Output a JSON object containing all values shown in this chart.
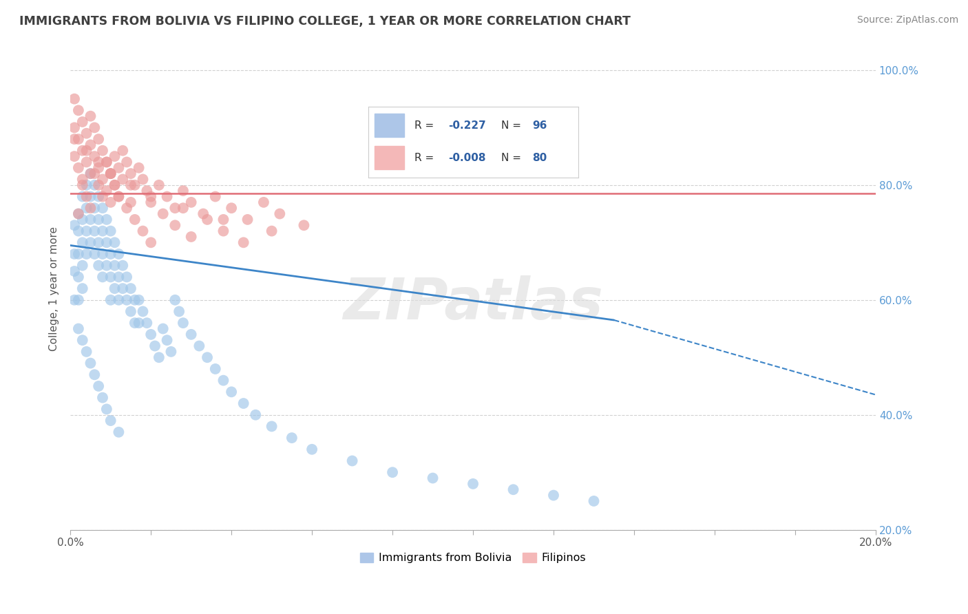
{
  "title": "IMMIGRANTS FROM BOLIVIA VS FILIPINO COLLEGE, 1 YEAR OR MORE CORRELATION CHART",
  "source_text": "Source: ZipAtlas.com",
  "ylabel": "College, 1 year or more",
  "xlim": [
    0.0,
    0.2
  ],
  "ylim": [
    0.2,
    1.04
  ],
  "xticks_major": [
    0.0,
    0.02,
    0.04,
    0.06,
    0.08,
    0.1,
    0.12,
    0.14,
    0.16,
    0.18,
    0.2
  ],
  "xtick_label_left": "0.0%",
  "xtick_label_right": "20.0%",
  "yticks": [
    0.2,
    0.4,
    0.6,
    0.8,
    1.0
  ],
  "ytick_labels": [
    "20.0%",
    "40.0%",
    "60.0%",
    "80.0%",
    "100.0%"
  ],
  "legend_labels": [
    "Immigrants from Bolivia",
    "Filipinos"
  ],
  "blue_color": "#9fc5e8",
  "pink_color": "#ea9999",
  "blue_line_color": "#3d85c8",
  "pink_line_color": "#e06c75",
  "watermark": "ZIPatlas",
  "trend_line_blue_x0": 0.0,
  "trend_line_blue_y0": 0.695,
  "trend_line_blue_solid_x1": 0.135,
  "trend_line_blue_solid_y1": 0.565,
  "trend_line_blue_dash_x1": 0.2,
  "trend_line_blue_dash_y1": 0.435,
  "trend_line_pink_x0": 0.0,
  "trend_line_pink_y0": 0.785,
  "trend_line_pink_x1": 0.2,
  "trend_line_pink_y1": 0.785,
  "blue_x": [
    0.001,
    0.001,
    0.001,
    0.001,
    0.002,
    0.002,
    0.002,
    0.002,
    0.002,
    0.003,
    0.003,
    0.003,
    0.003,
    0.003,
    0.004,
    0.004,
    0.004,
    0.004,
    0.005,
    0.005,
    0.005,
    0.005,
    0.006,
    0.006,
    0.006,
    0.006,
    0.007,
    0.007,
    0.007,
    0.007,
    0.008,
    0.008,
    0.008,
    0.008,
    0.009,
    0.009,
    0.009,
    0.01,
    0.01,
    0.01,
    0.01,
    0.011,
    0.011,
    0.011,
    0.012,
    0.012,
    0.012,
    0.013,
    0.013,
    0.014,
    0.014,
    0.015,
    0.015,
    0.016,
    0.016,
    0.017,
    0.017,
    0.018,
    0.019,
    0.02,
    0.021,
    0.022,
    0.023,
    0.024,
    0.025,
    0.026,
    0.027,
    0.028,
    0.03,
    0.032,
    0.034,
    0.036,
    0.038,
    0.04,
    0.043,
    0.046,
    0.05,
    0.055,
    0.06,
    0.07,
    0.08,
    0.09,
    0.1,
    0.11,
    0.12,
    0.13,
    0.002,
    0.003,
    0.004,
    0.005,
    0.006,
    0.007,
    0.008,
    0.009,
    0.01,
    0.012
  ],
  "blue_y": [
    0.73,
    0.68,
    0.65,
    0.6,
    0.75,
    0.72,
    0.68,
    0.64,
    0.6,
    0.78,
    0.74,
    0.7,
    0.66,
    0.62,
    0.8,
    0.76,
    0.72,
    0.68,
    0.82,
    0.78,
    0.74,
    0.7,
    0.8,
    0.76,
    0.72,
    0.68,
    0.78,
    0.74,
    0.7,
    0.66,
    0.76,
    0.72,
    0.68,
    0.64,
    0.74,
    0.7,
    0.66,
    0.72,
    0.68,
    0.64,
    0.6,
    0.7,
    0.66,
    0.62,
    0.68,
    0.64,
    0.6,
    0.66,
    0.62,
    0.64,
    0.6,
    0.62,
    0.58,
    0.6,
    0.56,
    0.6,
    0.56,
    0.58,
    0.56,
    0.54,
    0.52,
    0.5,
    0.55,
    0.53,
    0.51,
    0.6,
    0.58,
    0.56,
    0.54,
    0.52,
    0.5,
    0.48,
    0.46,
    0.44,
    0.42,
    0.4,
    0.38,
    0.36,
    0.34,
    0.32,
    0.3,
    0.29,
    0.28,
    0.27,
    0.26,
    0.25,
    0.55,
    0.53,
    0.51,
    0.49,
    0.47,
    0.45,
    0.43,
    0.41,
    0.39,
    0.37
  ],
  "pink_x": [
    0.001,
    0.001,
    0.001,
    0.002,
    0.002,
    0.002,
    0.003,
    0.003,
    0.003,
    0.004,
    0.004,
    0.005,
    0.005,
    0.005,
    0.006,
    0.006,
    0.007,
    0.007,
    0.008,
    0.008,
    0.009,
    0.009,
    0.01,
    0.01,
    0.011,
    0.011,
    0.012,
    0.012,
    0.013,
    0.013,
    0.014,
    0.015,
    0.015,
    0.016,
    0.017,
    0.018,
    0.019,
    0.02,
    0.022,
    0.024,
    0.026,
    0.028,
    0.03,
    0.033,
    0.036,
    0.04,
    0.044,
    0.048,
    0.052,
    0.058,
    0.002,
    0.003,
    0.004,
    0.005,
    0.006,
    0.007,
    0.008,
    0.009,
    0.01,
    0.011,
    0.012,
    0.014,
    0.016,
    0.018,
    0.02,
    0.023,
    0.026,
    0.03,
    0.034,
    0.038,
    0.043,
    0.001,
    0.004,
    0.007,
    0.01,
    0.015,
    0.02,
    0.028,
    0.038,
    0.05
  ],
  "pink_y": [
    0.95,
    0.9,
    0.85,
    0.93,
    0.88,
    0.83,
    0.91,
    0.86,
    0.81,
    0.89,
    0.84,
    0.92,
    0.87,
    0.82,
    0.9,
    0.85,
    0.88,
    0.83,
    0.86,
    0.81,
    0.84,
    0.79,
    0.82,
    0.77,
    0.85,
    0.8,
    0.83,
    0.78,
    0.86,
    0.81,
    0.84,
    0.82,
    0.77,
    0.8,
    0.83,
    0.81,
    0.79,
    0.77,
    0.8,
    0.78,
    0.76,
    0.79,
    0.77,
    0.75,
    0.78,
    0.76,
    0.74,
    0.77,
    0.75,
    0.73,
    0.75,
    0.8,
    0.78,
    0.76,
    0.82,
    0.8,
    0.78,
    0.84,
    0.82,
    0.8,
    0.78,
    0.76,
    0.74,
    0.72,
    0.7,
    0.75,
    0.73,
    0.71,
    0.74,
    0.72,
    0.7,
    0.88,
    0.86,
    0.84,
    0.82,
    0.8,
    0.78,
    0.76,
    0.74,
    0.72
  ]
}
